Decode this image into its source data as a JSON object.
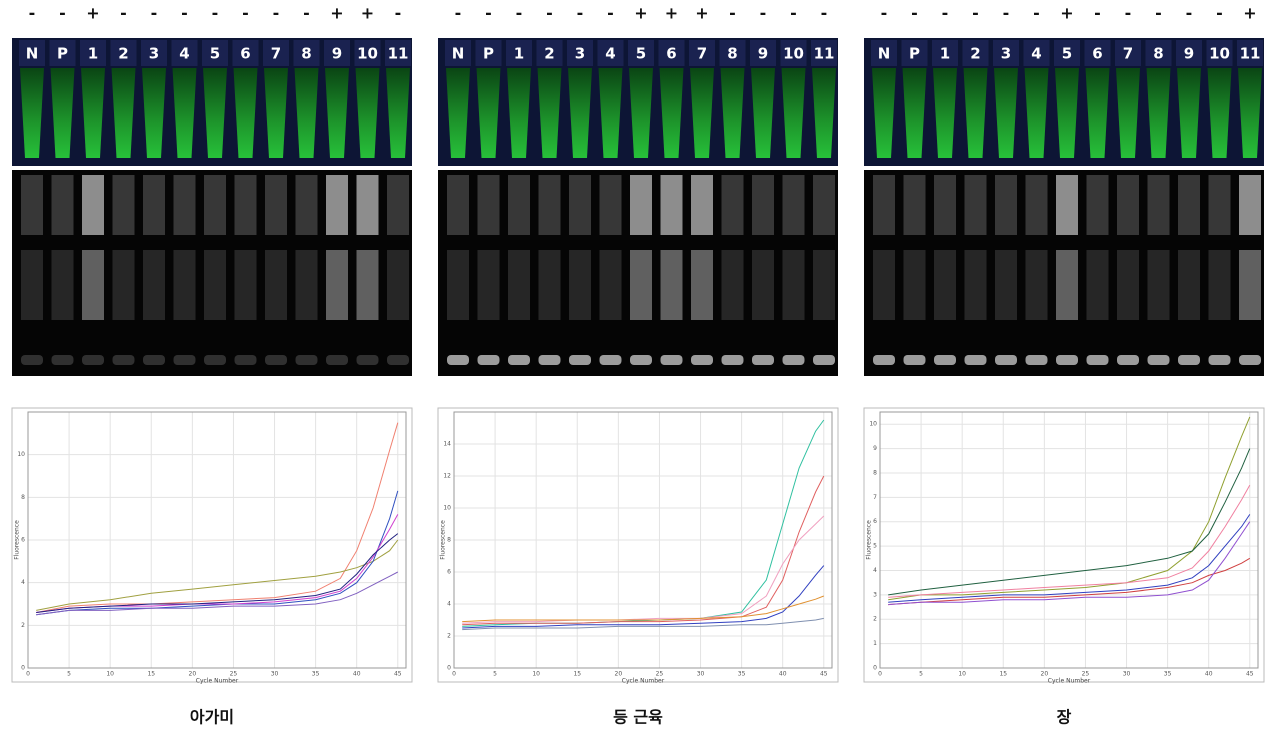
{
  "panels": [
    {
      "signs": [
        "-",
        "-",
        "+",
        "-",
        "-",
        "-",
        "-",
        "-",
        "-",
        "-",
        "+",
        "+",
        "-"
      ],
      "lanes": [
        "N",
        "P",
        "1",
        "2",
        "3",
        "4",
        "5",
        "6",
        "7",
        "8",
        "9",
        "10",
        "11"
      ],
      "caption": "아가미"
    },
    {
      "signs": [
        "-",
        "-",
        "-",
        "-",
        "-",
        "-",
        "+",
        "+",
        "+",
        "-",
        "-",
        "-",
        "-"
      ],
      "lanes": [
        "N",
        "P",
        "1",
        "2",
        "3",
        "4",
        "5",
        "6",
        "7",
        "8",
        "9",
        "10",
        "11"
      ],
      "caption": "등 근육"
    },
    {
      "signs": [
        "-",
        "-",
        "-",
        "-",
        "-",
        "-",
        "+",
        "-",
        "-",
        "-",
        "-",
        "-",
        "+"
      ],
      "lanes": [
        "N",
        "P",
        "1",
        "2",
        "3",
        "4",
        "5",
        "6",
        "7",
        "8",
        "9",
        "10",
        "11"
      ],
      "caption": "장"
    }
  ],
  "chart_data": [
    {
      "type": "line",
      "x_label": "Cycle Number",
      "y_label": "Fluorescence",
      "grid": true,
      "x": [
        1,
        5,
        10,
        15,
        20,
        25,
        30,
        35,
        38,
        40,
        42,
        44,
        45
      ],
      "xlim": [
        0,
        46
      ],
      "xticks": [
        0,
        5,
        10,
        15,
        20,
        25,
        30,
        35,
        40,
        45
      ],
      "ylim": [
        0,
        12
      ],
      "yticks": [
        0,
        2,
        4,
        6,
        8,
        10
      ],
      "series": [
        {
          "color": "#f08070",
          "values": [
            2.6,
            2.9,
            3.0,
            3.0,
            3.1,
            3.2,
            3.3,
            3.6,
            4.2,
            5.5,
            7.5,
            10.2,
            11.5
          ]
        },
        {
          "color": "#a0a040",
          "values": [
            2.7,
            3.0,
            3.2,
            3.5,
            3.7,
            3.9,
            4.1,
            4.3,
            4.5,
            4.7,
            5.0,
            5.5,
            6.0
          ]
        },
        {
          "color": "#3050c0",
          "values": [
            2.5,
            2.7,
            2.8,
            2.8,
            2.9,
            3.0,
            3.0,
            3.2,
            3.5,
            4.0,
            5.0,
            7.0,
            8.3
          ]
        },
        {
          "color": "#d040d0",
          "values": [
            2.6,
            2.8,
            2.9,
            2.9,
            3.0,
            3.0,
            3.1,
            3.3,
            3.6,
            4.2,
            5.2,
            6.5,
            7.2
          ]
        },
        {
          "color": "#8060c0",
          "values": [
            2.5,
            2.7,
            2.7,
            2.8,
            2.8,
            2.9,
            2.9,
            3.0,
            3.2,
            3.5,
            3.9,
            4.3,
            4.5
          ]
        },
        {
          "color": "#202080",
          "values": [
            2.6,
            2.8,
            2.9,
            3.0,
            3.0,
            3.1,
            3.2,
            3.4,
            3.7,
            4.4,
            5.3,
            6.0,
            6.3
          ]
        }
      ]
    },
    {
      "type": "line",
      "x_label": "Cycle Number",
      "y_label": "Fluorescence",
      "grid": true,
      "x": [
        1,
        5,
        10,
        15,
        20,
        25,
        30,
        35,
        38,
        40,
        42,
        44,
        45
      ],
      "xlim": [
        0,
        46
      ],
      "xticks": [
        0,
        5,
        10,
        15,
        20,
        25,
        30,
        35,
        40,
        45
      ],
      "ylim": [
        0,
        16
      ],
      "yticks": [
        0,
        2,
        4,
        6,
        8,
        10,
        12,
        14
      ],
      "series": [
        {
          "color": "#30c0a0",
          "values": [
            2.6,
            2.7,
            2.8,
            2.8,
            2.9,
            3.0,
            3.1,
            3.5,
            5.5,
            9.0,
            12.5,
            14.8,
            15.5
          ]
        },
        {
          "color": "#e06060",
          "values": [
            2.7,
            2.8,
            2.8,
            2.8,
            2.9,
            2.9,
            3.0,
            3.2,
            3.8,
            5.5,
            8.5,
            11.0,
            12.0
          ]
        },
        {
          "color": "#f0a0c0",
          "values": [
            2.8,
            2.9,
            2.9,
            3.0,
            3.0,
            3.1,
            3.1,
            3.4,
            4.5,
            6.5,
            8.0,
            9.0,
            9.5
          ]
        },
        {
          "color": "#3040c0",
          "values": [
            2.5,
            2.6,
            2.6,
            2.7,
            2.7,
            2.7,
            2.8,
            2.9,
            3.1,
            3.5,
            4.5,
            5.8,
            6.4
          ]
        },
        {
          "color": "#e09030",
          "values": [
            2.9,
            3.0,
            3.0,
            3.0,
            3.0,
            3.0,
            3.1,
            3.2,
            3.4,
            3.7,
            4.0,
            4.3,
            4.5
          ]
        },
        {
          "color": "#8090b0",
          "values": [
            2.4,
            2.5,
            2.5,
            2.5,
            2.6,
            2.6,
            2.6,
            2.7,
            2.7,
            2.8,
            2.9,
            3.0,
            3.1
          ]
        }
      ]
    },
    {
      "type": "line",
      "x_label": "Cycle Number",
      "y_label": "Fluorescence",
      "grid": true,
      "x": [
        1,
        5,
        10,
        15,
        20,
        25,
        30,
        35,
        38,
        40,
        42,
        44,
        45
      ],
      "xlim": [
        0,
        46
      ],
      "xticks": [
        0,
        5,
        10,
        15,
        20,
        25,
        30,
        35,
        40,
        45
      ],
      "ylim": [
        0,
        10.5
      ],
      "yticks": [
        0,
        1,
        2,
        3,
        4,
        5,
        6,
        7,
        8,
        9,
        10
      ],
      "series": [
        {
          "color": "#90a030",
          "values": [
            2.8,
            3.0,
            3.0,
            3.1,
            3.2,
            3.3,
            3.5,
            4.0,
            4.8,
            6.0,
            7.8,
            9.5,
            10.3
          ]
        },
        {
          "color": "#206040",
          "values": [
            3.0,
            3.2,
            3.4,
            3.6,
            3.8,
            4.0,
            4.2,
            4.5,
            4.8,
            5.5,
            6.8,
            8.2,
            9.0
          ]
        },
        {
          "color": "#3040c0",
          "values": [
            2.7,
            2.8,
            2.9,
            3.0,
            3.0,
            3.1,
            3.2,
            3.4,
            3.7,
            4.2,
            5.0,
            5.8,
            6.3
          ]
        },
        {
          "color": "#f080a0",
          "values": [
            2.9,
            3.0,
            3.1,
            3.2,
            3.3,
            3.4,
            3.5,
            3.7,
            4.1,
            4.8,
            5.8,
            6.9,
            7.5
          ]
        },
        {
          "color": "#d04040",
          "values": [
            2.6,
            2.7,
            2.8,
            2.9,
            2.9,
            3.0,
            3.1,
            3.3,
            3.5,
            3.8,
            4.0,
            4.3,
            4.5
          ]
        },
        {
          "color": "#9050d0",
          "values": [
            2.6,
            2.7,
            2.7,
            2.8,
            2.8,
            2.9,
            2.9,
            3.0,
            3.2,
            3.6,
            4.5,
            5.5,
            6.0
          ]
        }
      ]
    }
  ]
}
